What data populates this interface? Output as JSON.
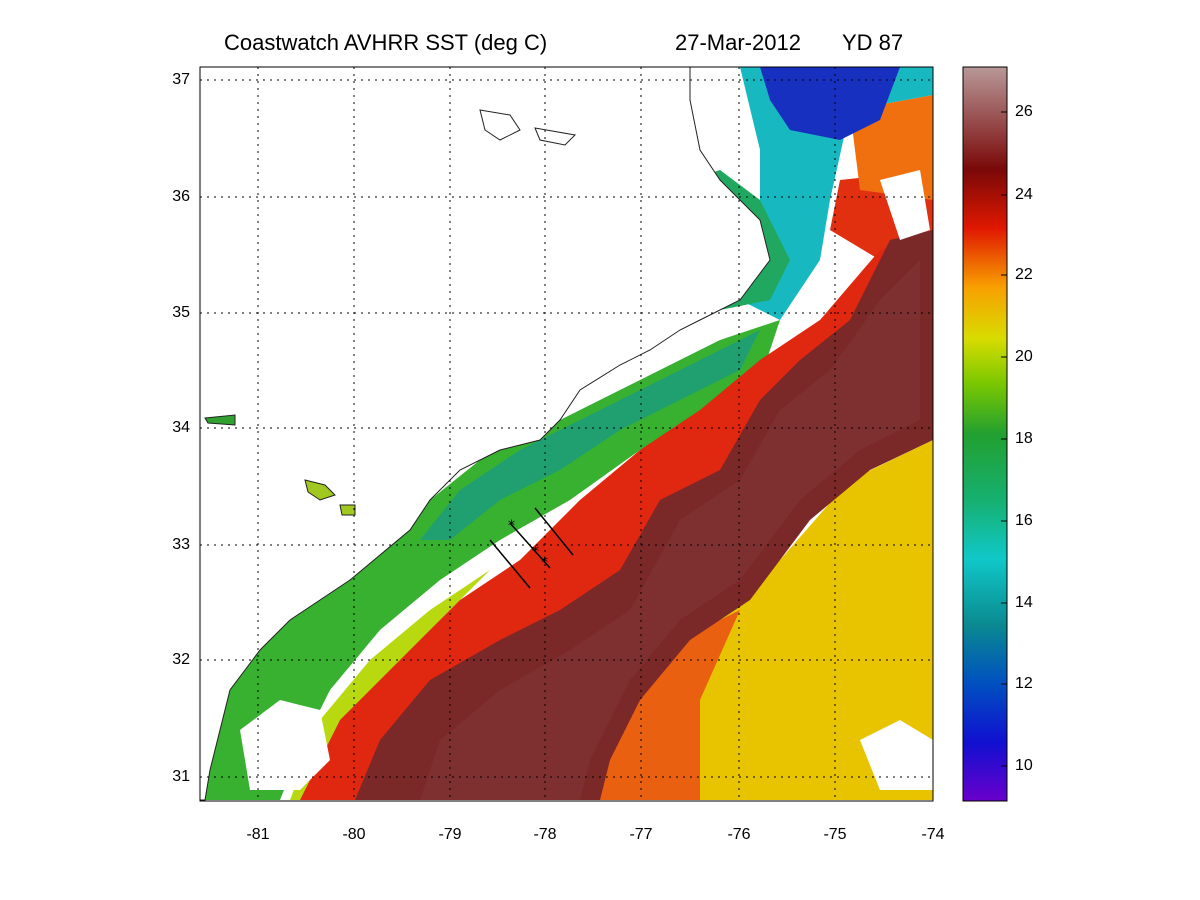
{
  "header": {
    "title": "Coastwatch   AVHRR   SST  (deg C)",
    "date": "27-Mar-2012",
    "yearday": "YD 87"
  },
  "map_axes": {
    "lon_ticks": [
      "-81",
      "-80",
      "-79",
      "-78",
      "-77",
      "-76",
      "-75",
      "-74"
    ],
    "lat_ticks": [
      "37",
      "36",
      "35",
      "34",
      "33",
      "32",
      "31"
    ],
    "lon_range": [
      -81.6,
      -74
    ],
    "lat_range": [
      30.8,
      37.1
    ],
    "grid": "dotted"
  },
  "colorbar": {
    "ticks": [
      "26",
      "24",
      "22",
      "20",
      "18",
      "16",
      "14",
      "12",
      "10"
    ],
    "range": [
      9,
      27
    ],
    "colormap": [
      "#6a00cc",
      "#1010d0",
      "#0050c0",
      "#0a8a90",
      "#10c8c8",
      "#16b070",
      "#22a030",
      "#7cc800",
      "#d8dc00",
      "#f8a000",
      "#e01800",
      "#7a0808",
      "#b89898"
    ]
  },
  "transects": {
    "station_markers": "asterisk",
    "count": 3
  }
}
